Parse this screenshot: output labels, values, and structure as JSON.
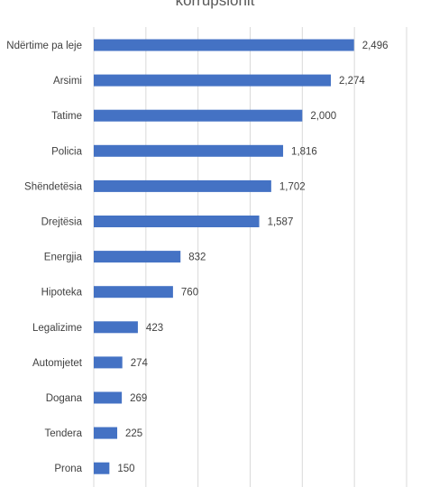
{
  "chart_data": {
    "type": "bar",
    "orientation": "horizontal",
    "title": "korrupsionit",
    "categories": [
      "Ndërtime pa leje",
      "Arsimi",
      "Tatime",
      "Policia",
      "Shëndetësia",
      "Drejtësia",
      "Energjia",
      "Hipoteka",
      "Legalizime",
      "Automjetet",
      "Dogana",
      "Tendera",
      "Prona"
    ],
    "values": [
      2496,
      2274,
      2000,
      1816,
      1702,
      1587,
      832,
      760,
      423,
      274,
      269,
      225,
      150
    ],
    "value_labels": [
      "2,496",
      "2,274",
      "2,000",
      "1,816",
      "1,702",
      "1,587",
      "832",
      "760",
      "423",
      "274",
      "269",
      "225",
      "150"
    ],
    "xlim": [
      0,
      3000
    ],
    "grid": true,
    "legend": "none",
    "bar_color": "#4472c4"
  }
}
